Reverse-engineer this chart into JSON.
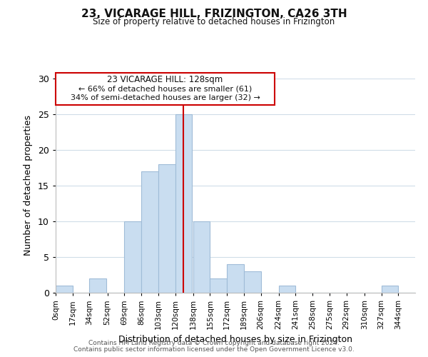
{
  "title": "23, VICARAGE HILL, FRIZINGTON, CA26 3TH",
  "subtitle": "Size of property relative to detached houses in Frizington",
  "xlabel": "Distribution of detached houses by size in Frizington",
  "ylabel": "Number of detached properties",
  "bin_labels": [
    "0sqm",
    "17sqm",
    "34sqm",
    "52sqm",
    "69sqm",
    "86sqm",
    "103sqm",
    "120sqm",
    "138sqm",
    "155sqm",
    "172sqm",
    "189sqm",
    "206sqm",
    "224sqm",
    "241sqm",
    "258sqm",
    "275sqm",
    "292sqm",
    "310sqm",
    "327sqm",
    "344sqm"
  ],
  "bin_counts": [
    1,
    0,
    2,
    0,
    10,
    17,
    18,
    25,
    10,
    2,
    4,
    3,
    0,
    1,
    0,
    0,
    0,
    0,
    0,
    1,
    0
  ],
  "bar_color": "#c9ddf0",
  "bar_edge_color": "#a0bcd8",
  "property_line_x": 128,
  "property_line_color": "#cc0000",
  "ylim": [
    0,
    30
  ],
  "yticks": [
    0,
    5,
    10,
    15,
    20,
    25,
    30
  ],
  "annotation_title": "23 VICARAGE HILL: 128sqm",
  "annotation_line1": "← 66% of detached houses are smaller (61)",
  "annotation_line2": "34% of semi-detached houses are larger (32) →",
  "annotation_box_color": "#ffffff",
  "annotation_box_edge": "#cc0000",
  "footer1": "Contains HM Land Registry data © Crown copyright and database right 2024.",
  "footer2": "Contains public sector information licensed under the Open Government Licence v3.0.",
  "bin_width": 17,
  "bin_starts": [
    0,
    17,
    34,
    52,
    69,
    86,
    103,
    120,
    138,
    155,
    172,
    189,
    206,
    224,
    241,
    258,
    275,
    292,
    310,
    327,
    344
  ]
}
